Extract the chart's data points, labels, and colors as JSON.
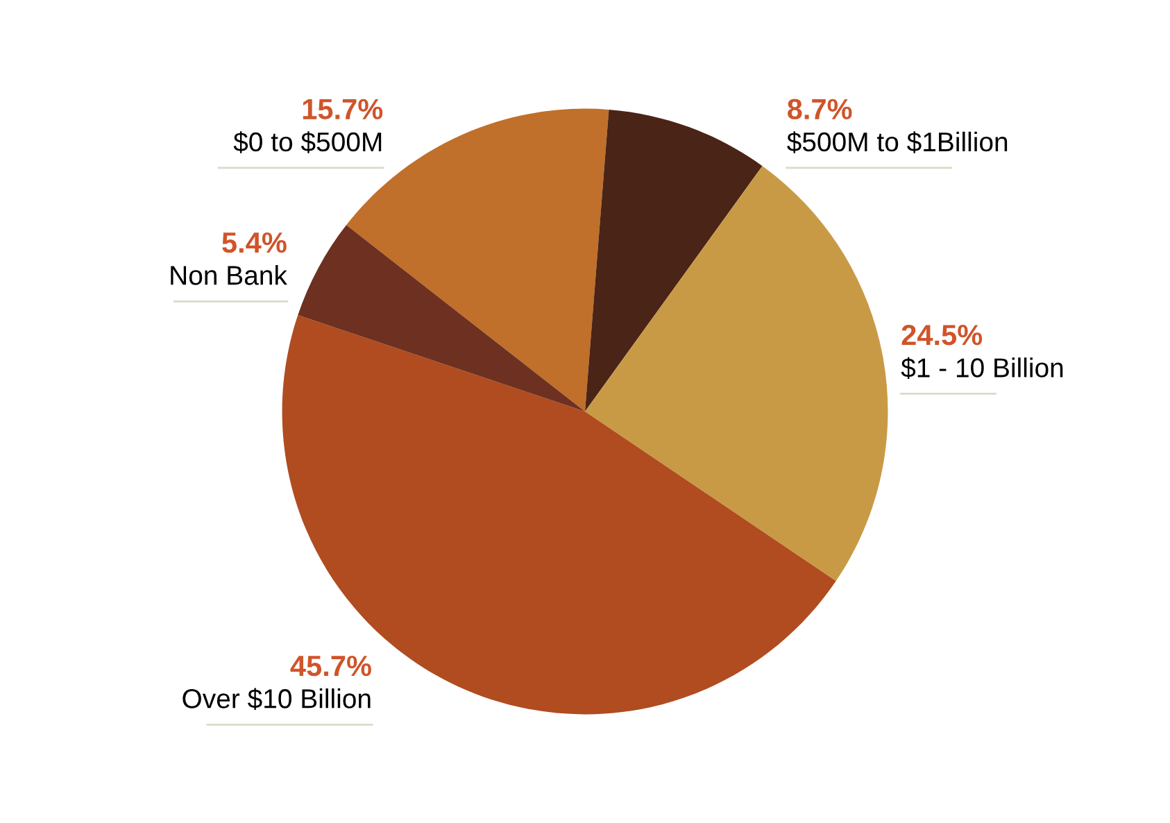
{
  "chart_data": {
    "type": "pie",
    "categories": [
      "$0 to $500M",
      "$500M to $1Billion",
      "$1 - 10 Billion",
      "Over $10 Billion",
      "Non Bank"
    ],
    "values": [
      15.7,
      8.7,
      24.5,
      45.7,
      5.4
    ],
    "value_labels": [
      "15.7%",
      "8.7%",
      "24.5%",
      "45.7%",
      "5.4%"
    ],
    "colors": [
      "#c0702a",
      "#4a2416",
      "#c99a45",
      "#b04c20",
      "#6e3020"
    ]
  }
}
